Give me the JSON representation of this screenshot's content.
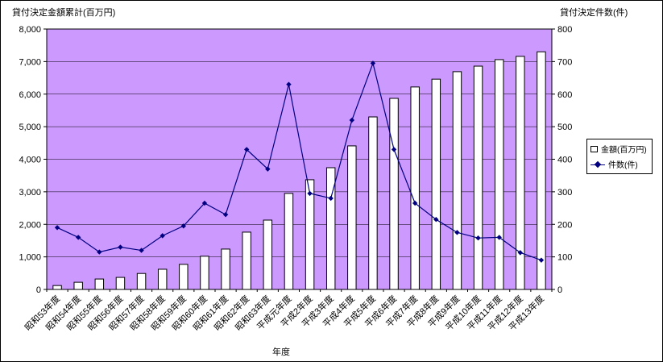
{
  "chart_data": {
    "type": "bar",
    "combo": "bar+line, dual axis",
    "title": "",
    "xlabel": "年度",
    "left_axis_title": "貸付決定金額累計(百万円)",
    "right_axis_title": "貸付決定件数(件)",
    "left_axis": {
      "min": 0,
      "max": 8000,
      "step": 1000,
      "tick_labels": [
        "0",
        "1,000",
        "2,000",
        "3,000",
        "4,000",
        "5,000",
        "6,000",
        "7,000",
        "8,000"
      ]
    },
    "right_axis": {
      "min": 0,
      "max": 800,
      "step": 100,
      "tick_labels": [
        "0",
        "100",
        "200",
        "300",
        "400",
        "500",
        "600",
        "700",
        "800"
      ]
    },
    "categories": [
      "昭和53年度",
      "昭和54年度",
      "昭和55年度",
      "昭和56年度",
      "昭和57年度",
      "昭和58年度",
      "昭和59年度",
      "昭和60年度",
      "昭和61年度",
      "昭和62年度",
      "昭和63年度",
      "平成元年度",
      "平成2年度",
      "平成3年度",
      "平成4年度",
      "平成5年度",
      "平成6年度",
      "平成7年度",
      "平成8年度",
      "平成9年度",
      "平成10年度",
      "平成11年度",
      "平成12年度",
      "平成13年度"
    ],
    "series": [
      {
        "name": "金額(百万円)",
        "type": "bar",
        "axis": "left",
        "values": [
          120,
          220,
          320,
          370,
          490,
          620,
          770,
          1020,
          1240,
          1760,
          2130,
          2950,
          3370,
          3740,
          4410,
          5300,
          5870,
          6220,
          6460,
          6690,
          6860,
          7060,
          7160,
          7300
        ]
      },
      {
        "name": "件数(件)",
        "type": "line",
        "axis": "right",
        "values": [
          190,
          160,
          115,
          130,
          120,
          165,
          195,
          265,
          230,
          430,
          370,
          630,
          295,
          280,
          520,
          695,
          430,
          265,
          215,
          175,
          158,
          160,
          113,
          90
        ]
      }
    ],
    "legend_position": "right",
    "grid": true,
    "colors": {
      "plot_bg": "#CC99FF",
      "bar_fill": "#FFFFFF",
      "bar_border": "#000000",
      "line": "#000080",
      "grid": "#000000"
    }
  }
}
